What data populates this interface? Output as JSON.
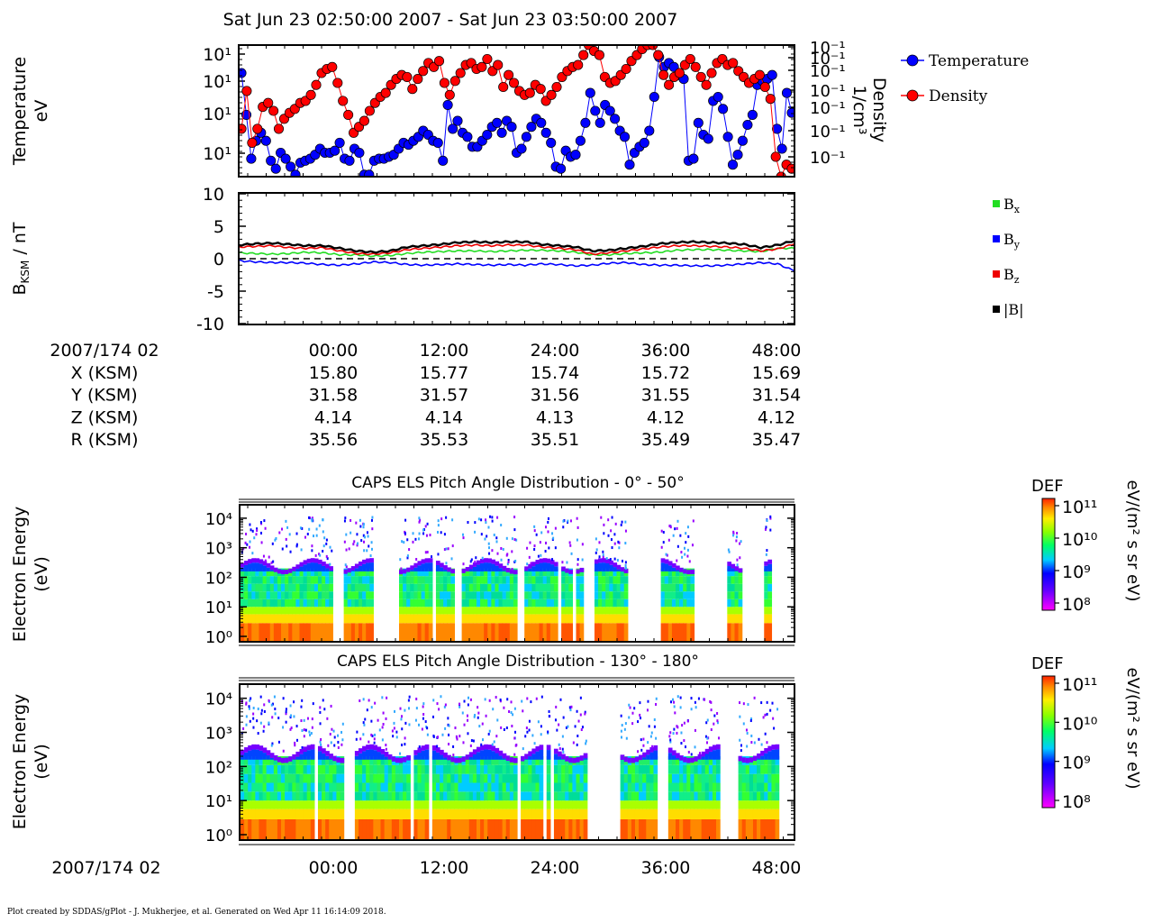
{
  "title": "Sat Jun 23 02:50:00 2007 - Sat Jun 23 03:50:00 2007",
  "footer": "Plot created by SDDAS/gPlot - J. Mukherjee, et al.  Generated on Wed Apr 11 16:14:09 2018.",
  "chart_data": [
    {
      "type": "line",
      "panel": "moments",
      "ylabel_left_lines": [
        "Temperature",
        "eV"
      ],
      "ylabel_right_lines": [
        "Density",
        "1/cm³"
      ],
      "left_ticks": [
        "10¹",
        "10¹",
        "10¹",
        "10¹"
      ],
      "right_ticks": [
        "10⁻¹",
        "10⁻¹",
        "10⁻¹",
        "10⁻¹",
        "10⁻¹",
        "10⁻¹",
        "10⁻¹"
      ],
      "y_scale": "log",
      "legend_position": "right",
      "series": [
        {
          "name": "Temperature",
          "color": "#0000ff",
          "values": [
            2.6,
            1.55,
            0.45,
            0.9,
            1.1,
            0.9,
            0.4,
            0.2,
            0.6,
            0.45,
            0.25,
            0.05,
            0.35,
            0.4,
            0.45,
            0.55,
            0.7,
            0.6,
            0.6,
            0.65,
            0.85,
            0.45,
            0.4,
            0.7,
            0.6,
            0.05,
            0.05,
            0.4,
            0.45,
            0.45,
            0.5,
            0.55,
            0.7,
            0.85,
            0.8,
            0.9,
            1.0,
            1.15,
            1.05,
            0.9,
            0.85,
            0.4,
            1.8,
            1.2,
            1.4,
            1.1,
            1.0,
            0.75,
            0.75,
            0.9,
            1.05,
            1.25,
            1.35,
            1.1,
            1.4,
            1.25,
            0.6,
            0.7,
            1.0,
            1.25,
            1.45,
            1.35,
            1.1,
            0.85,
            0.25,
            0.2,
            0.65,
            0.5,
            0.55,
            0.9,
            1.35,
            2.1,
            1.65,
            1.35,
            1.8,
            1.65,
            1.45,
            1.15,
            1.0,
            0.3,
            0.6,
            0.75,
            0.85,
            1.15,
            2.0,
            3.0,
            2.75,
            2.85,
            2.75,
            2.55,
            2.45,
            0.4,
            0.45,
            1.35,
            1.05,
            0.95,
            1.9,
            2.0,
            1.7,
            1.0,
            0.3,
            0.55,
            0.9,
            1.3,
            1.55,
            2.3,
            2.4,
            2.45,
            2.55,
            1.2,
            0.7,
            2.1,
            1.6
          ]
        },
        {
          "name": "Density",
          "color": "#ff0000",
          "values": [
            1.2,
            2.15,
            0.85,
            1.2,
            1.75,
            1.85,
            1.65,
            1.2,
            1.45,
            1.6,
            1.7,
            1.85,
            1.9,
            2.05,
            2.3,
            2.6,
            2.7,
            2.75,
            2.35,
            1.9,
            1.55,
            1.1,
            1.25,
            1.4,
            1.65,
            1.85,
            2.0,
            2.1,
            2.3,
            2.45,
            2.55,
            2.5,
            2.2,
            2.45,
            2.65,
            2.85,
            2.75,
            2.9,
            2.35,
            2.05,
            2.4,
            2.6,
            2.8,
            2.85,
            2.7,
            2.75,
            2.95,
            2.65,
            2.8,
            2.25,
            2.55,
            2.35,
            2.15,
            2.05,
            2.1,
            2.3,
            2.2,
            1.9,
            2.05,
            2.25,
            2.5,
            2.65,
            2.75,
            2.8,
            3.05,
            3.3,
            3.15,
            3.05,
            2.5,
            2.35,
            2.4,
            2.55,
            2.7,
            2.9,
            3.05,
            3.2,
            3.3,
            3.3,
            3.05,
            2.55,
            2.3,
            2.5,
            2.6,
            2.8,
            2.95,
            2.75,
            2.5,
            2.3,
            2.6,
            2.85,
            2.95,
            2.8,
            2.85,
            2.65,
            2.5,
            2.35,
            2.45,
            2.55,
            2.25,
            1.95,
            0.5,
            0.0,
            0.3,
            0.2
          ]
        }
      ]
    },
    {
      "type": "line",
      "panel": "magnetometer",
      "ylabel": "B",
      "ylabel_sub": "KSM",
      "ylabel_unit": " / nT",
      "yticks": [
        "10",
        "5",
        "0",
        "-5",
        "-10"
      ],
      "ylim": [
        -10,
        10
      ],
      "legend_position": "right",
      "series": [
        {
          "name": "B",
          "sub": "x",
          "color": "#22dd22",
          "values": [
            0.9,
            0.8,
            0.7,
            0.8,
            1.0,
            0.9,
            0.6,
            0.6,
            0.4,
            0.5,
            0.8,
            1.0,
            1.1,
            1.2,
            1.2,
            1.1,
            1.2,
            1.3,
            1.3,
            1.2,
            1.0,
            0.6,
            0.6,
            0.8,
            0.9,
            1.0,
            1.3,
            1.4,
            1.4,
            1.3,
            1.2,
            1.1,
            1.6,
            1.6
          ]
        },
        {
          "name": "B",
          "sub": "y",
          "color": "#0000ff",
          "values": [
            -0.3,
            -0.5,
            -0.6,
            -0.6,
            -0.7,
            -0.9,
            -1.0,
            -0.8,
            -0.5,
            -0.6,
            -0.9,
            -1.0,
            -0.9,
            -0.8,
            -0.9,
            -1.0,
            -0.9,
            -1.0,
            -0.8,
            -0.9,
            -1.1,
            -1.0,
            -0.7,
            -0.6,
            -0.9,
            -1.0,
            -1.0,
            -1.1,
            -1.1,
            -1.0,
            -0.8,
            -0.6,
            -0.8,
            -1.9
          ]
        },
        {
          "name": "B",
          "sub": "z",
          "color": "#ee0000",
          "values": [
            1.8,
            1.9,
            2.0,
            1.7,
            1.6,
            1.7,
            1.2,
            0.8,
            0.7,
            0.9,
            1.4,
            1.6,
            1.8,
            2.0,
            2.1,
            2.0,
            2.1,
            2.1,
            1.8,
            1.6,
            1.4,
            0.7,
            0.9,
            1.2,
            1.5,
            1.8,
            2.0,
            2.0,
            1.9,
            1.8,
            1.6,
            1.2,
            1.5,
            2.3
          ]
        },
        {
          "name": "|B|",
          "sub": "",
          "color": "#000000",
          "values": [
            2.1,
            2.3,
            2.4,
            2.2,
            2.0,
            2.0,
            1.6,
            1.2,
            1.0,
            1.2,
            1.8,
            2.0,
            2.2,
            2.5,
            2.6,
            2.5,
            2.6,
            2.6,
            2.2,
            2.0,
            1.8,
            1.2,
            1.3,
            1.6,
            1.9,
            2.3,
            2.5,
            2.6,
            2.5,
            2.4,
            2.2,
            1.7,
            2.1,
            2.8
          ]
        }
      ]
    },
    {
      "type": "heatmap",
      "panel": "pad_low",
      "title": "CAPS ELS Pitch Angle Distribution - 0° - 50°",
      "ylabel_lines": [
        "Electron Energy",
        "(eV)"
      ],
      "yticks": [
        "10⁰",
        "10¹",
        "10²",
        "10³",
        "10⁴"
      ],
      "y_scale": "log",
      "colorbar": {
        "label": "DEF",
        "unit": "eV/(m² s sr eV)",
        "ticks": [
          "10¹¹",
          "10¹⁰",
          "10⁹",
          "10⁸"
        ]
      },
      "gaps": [
        [
          0.168,
          0.177
        ],
        [
          0.183,
          0.189
        ],
        [
          0.239,
          0.288
        ],
        [
          0.345,
          0.351
        ],
        [
          0.389,
          0.399
        ],
        [
          0.501,
          0.51
        ],
        [
          0.572,
          0.583
        ],
        [
          0.597,
          0.604
        ],
        [
          0.618,
          0.642
        ],
        [
          0.7,
          0.758
        ],
        [
          0.823,
          0.877
        ],
        [
          0.904,
          0.945
        ],
        [
          0.96,
          1.0
        ]
      ]
    },
    {
      "type": "heatmap",
      "panel": "pad_high",
      "title": "CAPS ELS Pitch Angle Distribution - 130° - 180°",
      "ylabel_lines": [
        "Electron Energy",
        "(eV)"
      ],
      "yticks": [
        "10⁰",
        "10¹",
        "10²",
        "10³",
        "10⁴"
      ],
      "y_scale": "log",
      "colorbar": {
        "label": "DEF",
        "unit": "eV/(m² s sr eV)",
        "ticks": [
          "10¹¹",
          "10¹⁰",
          "10⁹",
          "10⁸"
        ]
      },
      "gaps": [
        [
          0.135,
          0.142
        ],
        [
          0.186,
          0.205
        ],
        [
          0.31,
          0.316
        ],
        [
          0.34,
          0.347
        ],
        [
          0.503,
          0.509
        ],
        [
          0.546,
          0.552
        ],
        [
          0.562,
          0.567
        ],
        [
          0.627,
          0.684
        ],
        [
          0.754,
          0.776
        ],
        [
          0.864,
          0.9
        ],
        [
          0.972,
          1.0
        ]
      ]
    }
  ],
  "ephemeris": {
    "header": "2007/174 02",
    "ticks": [
      "00:00",
      "12:00",
      "24:00",
      "36:00",
      "48:00"
    ],
    "rows": [
      {
        "label": "X (KSM)",
        "values": [
          "15.80",
          "15.77",
          "15.74",
          "15.72",
          "15.69"
        ]
      },
      {
        "label": "Y (KSM)",
        "values": [
          "31.58",
          "31.57",
          "31.56",
          "31.55",
          "31.54"
        ]
      },
      {
        "label": "Z (KSM)",
        "values": [
          "4.14",
          "4.14",
          "4.13",
          "4.12",
          "4.12"
        ]
      },
      {
        "label": "R (KSM)",
        "values": [
          "35.56",
          "35.53",
          "35.51",
          "35.49",
          "35.47"
        ]
      }
    ]
  },
  "bottom_axis": {
    "label": "2007/174 02",
    "ticks": [
      "00:00",
      "12:00",
      "24:00",
      "36:00",
      "48:00"
    ]
  }
}
